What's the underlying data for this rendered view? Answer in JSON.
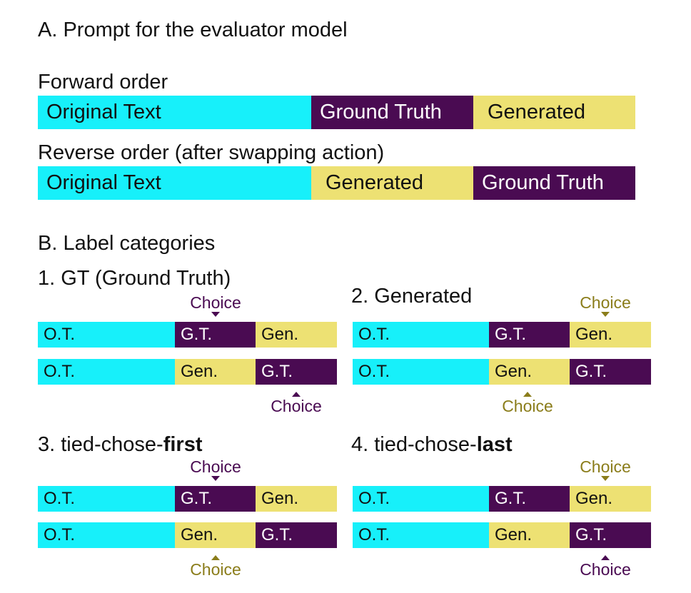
{
  "section_a": {
    "title": "A. Prompt for the evaluator model",
    "forward_label": "Forward order",
    "reverse_label": "Reverse order (after swapping action)",
    "forward": [
      "Original Text",
      "Ground Truth",
      "Generated"
    ],
    "reverse": [
      "Original Text",
      "Generated",
      "Ground Truth"
    ]
  },
  "section_b": {
    "title": "B. Label categories",
    "choice": "Choice",
    "seg": {
      "ot": "O.T.",
      "gt": "G.T.",
      "gen": "Gen."
    },
    "cat1": "1. GT (Ground Truth)",
    "cat2": "2. Generated",
    "cat3_prefix": "3. tied-chose-",
    "cat3_bold": "first",
    "cat4_prefix": "4. tied-chose-",
    "cat4_bold": "last"
  },
  "colors": {
    "original_text": "#17f0fa",
    "ground_truth": "#4a0b52",
    "generated": "#ede173",
    "choice_gt": "#4a0b52",
    "choice_gen": "#8b7d1b"
  }
}
